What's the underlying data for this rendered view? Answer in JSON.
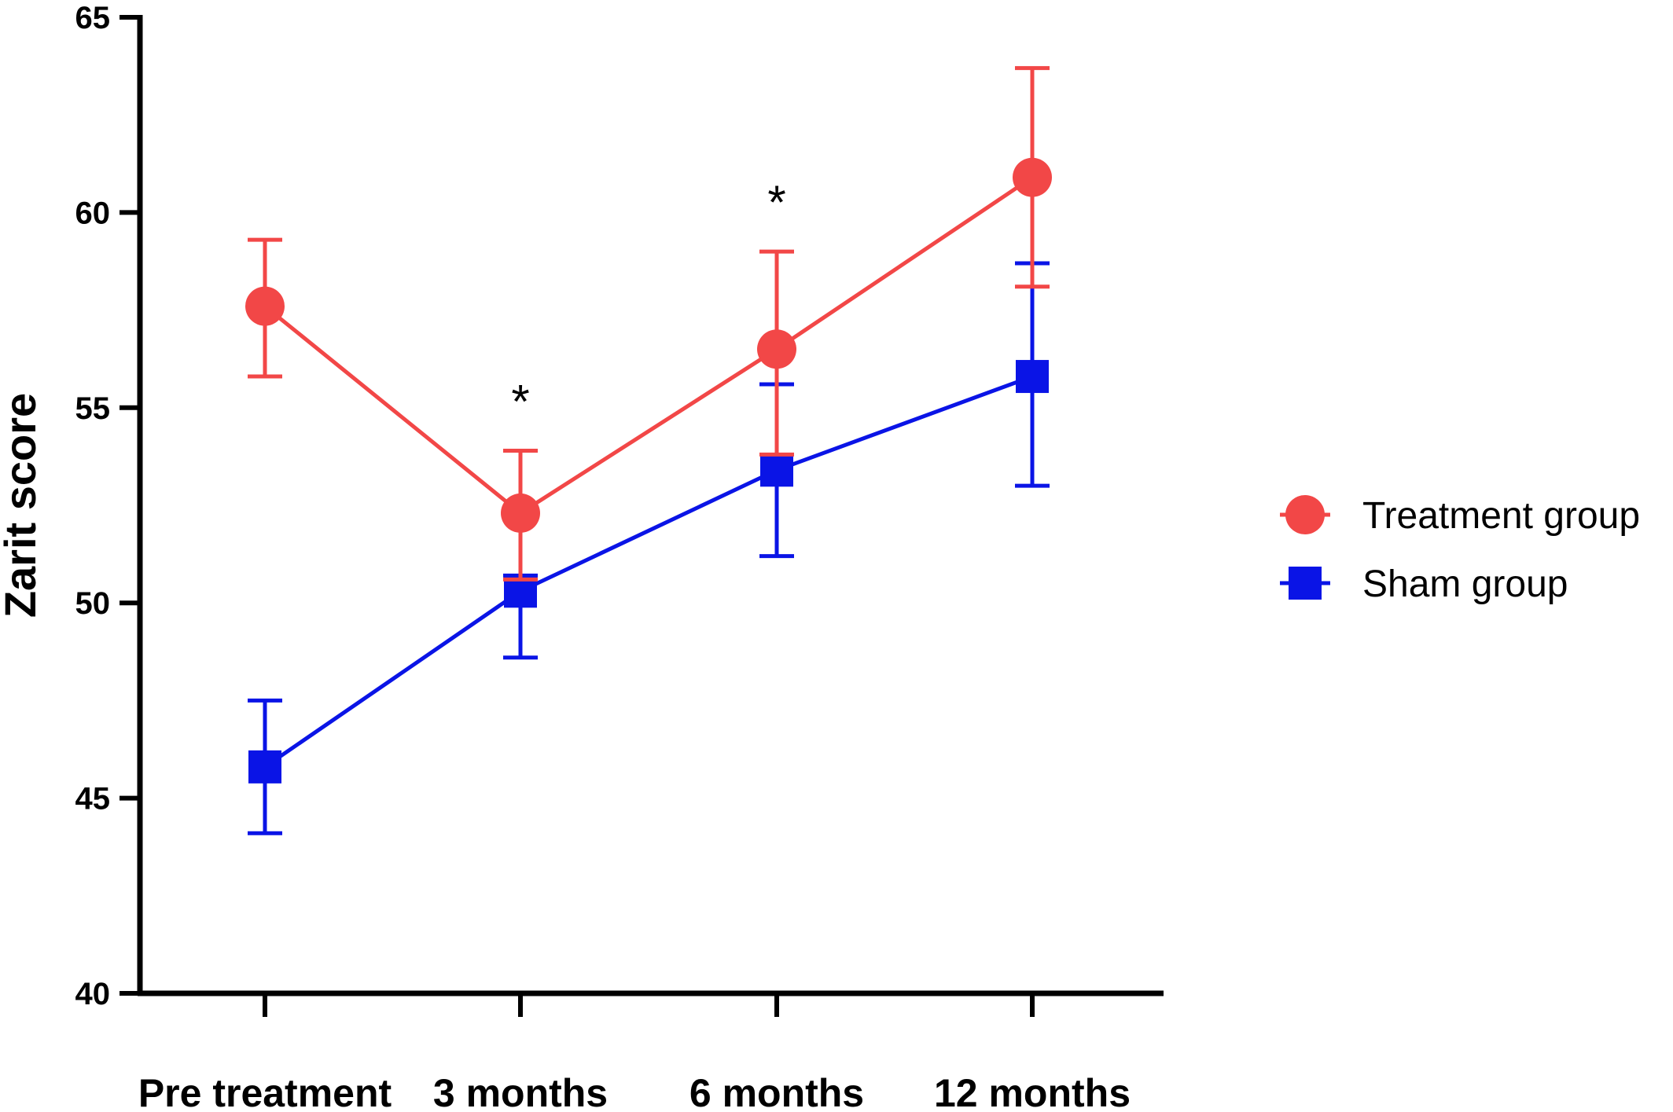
{
  "chart_data": {
    "type": "line",
    "title": "",
    "xlabel": "",
    "ylabel": "Zarit score",
    "ylim": [
      40,
      65
    ],
    "yticks": [
      40,
      45,
      50,
      55,
      60,
      65
    ],
    "categories": [
      "Pre treatment",
      "3 months",
      "6 months",
      "12 months"
    ],
    "series": [
      {
        "name": "Treatment group",
        "color": "#f24747",
        "marker": "circle",
        "values": [
          57.6,
          52.3,
          56.5,
          60.9
        ],
        "error_upper": [
          59.3,
          53.9,
          59.0,
          63.7
        ],
        "error_lower": [
          55.8,
          50.6,
          53.8,
          58.1
        ]
      },
      {
        "name": "Sham group",
        "color": "#0a14e6",
        "marker": "square",
        "values": [
          45.8,
          50.3,
          53.4,
          55.8
        ],
        "error_upper": [
          47.5,
          50.7,
          55.6,
          58.7
        ],
        "error_lower": [
          44.1,
          48.6,
          51.2,
          53.0
        ]
      }
    ],
    "annotations": [
      {
        "text": "*",
        "category": "3 months"
      },
      {
        "text": "*",
        "category": "6 months"
      }
    ],
    "grid": false,
    "legend": "right"
  }
}
